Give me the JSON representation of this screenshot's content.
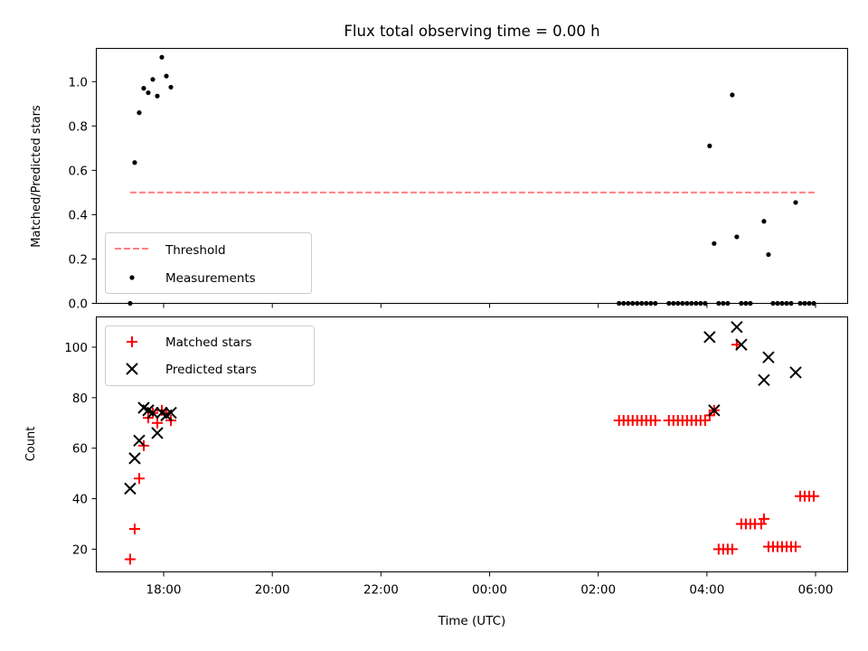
{
  "title": "Flux total observing time = 0.00 h",
  "xlabel": "Time (UTC)",
  "x_ticks": [
    "18:00",
    "20:00",
    "22:00",
    "00:00",
    "02:00",
    "04:00",
    "06:00"
  ],
  "chart_data": [
    {
      "type": "scatter",
      "ylabel": "Matched/Predicted stars",
      "ylim": [
        0,
        1.15
      ],
      "y_ticks": [
        "0.0",
        "0.2",
        "0.4",
        "0.6",
        "0.8",
        "1.0"
      ],
      "legend_position": "lower-left",
      "series": [
        {
          "name": "Threshold",
          "kind": "dashed-line",
          "color": "#ff8080",
          "x": [
            "17:23",
            "05:59"
          ],
          "y": [
            0.5,
            0.5
          ]
        },
        {
          "name": "Measurements",
          "kind": "dot",
          "color": "#000000",
          "x": [
            "17:23",
            "17:28",
            "17:33",
            "17:38",
            "17:43",
            "17:48",
            "17:53",
            "17:58",
            "18:03",
            "18:08",
            "02:23",
            "02:28",
            "02:33",
            "02:38",
            "02:43",
            "02:48",
            "02:53",
            "02:58",
            "03:03",
            "03:18",
            "03:23",
            "03:28",
            "03:33",
            "03:38",
            "03:43",
            "03:48",
            "03:53",
            "03:58",
            "04:03",
            "04:08",
            "04:13",
            "04:18",
            "04:23",
            "04:28",
            "04:33",
            "04:38",
            "04:43",
            "04:48",
            "05:03",
            "05:08",
            "05:13",
            "05:18",
            "05:23",
            "05:28",
            "05:33",
            "05:38",
            "05:43",
            "05:48",
            "05:53",
            "05:58"
          ],
          "y": [
            0.0,
            0.635,
            0.86,
            0.97,
            0.95,
            1.01,
            0.935,
            1.11,
            1.025,
            0.975,
            0,
            0,
            0,
            0,
            0,
            0,
            0,
            0,
            0,
            0,
            0,
            0,
            0,
            0,
            0,
            0,
            0,
            0,
            0.71,
            0.27,
            0,
            0,
            0,
            0.94,
            0.3,
            0,
            0,
            0,
            0.37,
            0.22,
            0,
            0,
            0,
            0,
            0,
            0.455,
            0,
            0,
            0,
            0
          ]
        }
      ]
    },
    {
      "type": "scatter",
      "ylabel": "Count",
      "ylim": [
        11,
        112
      ],
      "y_ticks": [
        "20",
        "40",
        "60",
        "80",
        "100"
      ],
      "legend_position": "upper-left",
      "series": [
        {
          "name": "Matched stars",
          "kind": "plus",
          "color": "#ff0000",
          "x": [
            "17:23",
            "17:28",
            "17:33",
            "17:38",
            "17:43",
            "17:48",
            "17:53",
            "17:58",
            "18:03",
            "18:08",
            "02:23",
            "02:28",
            "02:33",
            "02:38",
            "02:43",
            "02:48",
            "02:53",
            "02:58",
            "03:03",
            "03:18",
            "03:23",
            "03:28",
            "03:33",
            "03:38",
            "03:43",
            "03:48",
            "03:53",
            "03:58",
            "04:03",
            "04:08",
            "04:13",
            "04:18",
            "04:23",
            "04:28",
            "04:33",
            "04:38",
            "04:43",
            "04:48",
            "04:53",
            "05:00",
            "05:03",
            "05:08",
            "05:13",
            "05:18",
            "05:23",
            "05:28",
            "05:33",
            "05:38",
            "05:43",
            "05:48",
            "05:53",
            "05:58"
          ],
          "y": [
            16,
            28,
            48,
            61,
            72,
            74,
            70,
            75,
            74,
            71,
            71,
            71,
            71,
            71,
            71,
            71,
            71,
            71,
            71,
            71,
            71,
            71,
            71,
            71,
            71,
            71,
            71,
            71,
            73,
            75,
            20,
            20,
            20,
            20,
            101,
            30,
            30,
            30,
            30,
            30,
            32,
            21,
            21,
            21,
            21,
            21,
            21,
            21,
            41,
            41,
            41,
            41
          ]
        },
        {
          "name": "Predicted stars",
          "kind": "cross",
          "color": "#000000",
          "x": [
            "17:23",
            "17:28",
            "17:33",
            "17:38",
            "17:43",
            "17:48",
            "17:53",
            "17:58",
            "18:03",
            "18:08",
            "04:03",
            "04:08",
            "04:33",
            "04:38",
            "05:03",
            "05:08",
            "05:38"
          ],
          "y": [
            44,
            56,
            63,
            76,
            75,
            74,
            66,
            74,
            73,
            74,
            104,
            75,
            108,
            101,
            87,
            96,
            90
          ]
        }
      ]
    }
  ]
}
